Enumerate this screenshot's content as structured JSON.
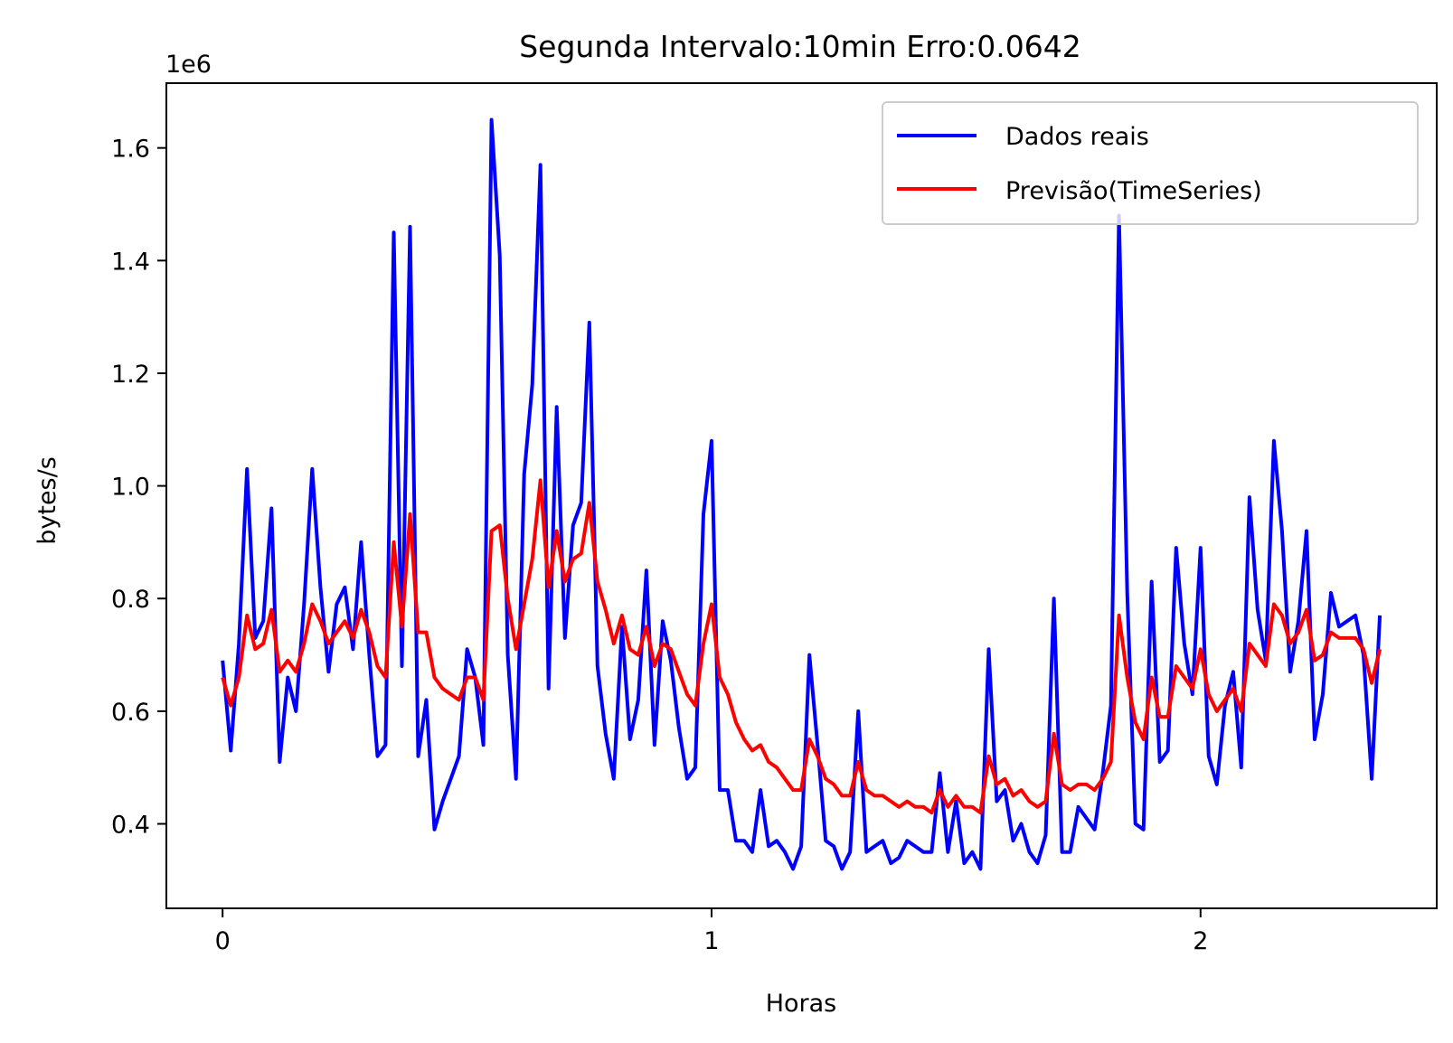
{
  "chart_data": {
    "type": "line",
    "title": "Segunda Intervalo:10min Erro:0.0642",
    "xlabel": "Horas",
    "ylabel": "bytes/s",
    "y_offset_label": "1e6",
    "xlim": [
      -0.115,
      2.483
    ],
    "ylim": [
      0.25,
      1.715
    ],
    "x_ticks": [
      0,
      1,
      2
    ],
    "x_tick_labels": [
      "0",
      "1",
      "2"
    ],
    "y_ticks": [
      0.4,
      0.6,
      0.8,
      1.0,
      1.2,
      1.4,
      1.6
    ],
    "y_tick_labels": [
      "0.4",
      "0.6",
      "0.8",
      "1.0",
      "1.2",
      "1.4",
      "1.6"
    ],
    "grid": false,
    "legend_position": "top-right",
    "series": [
      {
        "name": "Dados reais",
        "color": "#0000ff",
        "x": [
          0,
          0.0167,
          0.0333,
          0.05,
          0.0667,
          0.0833,
          0.1,
          0.1167,
          0.1333,
          0.15,
          0.1667,
          0.1833,
          0.2,
          0.2167,
          0.2333,
          0.25,
          0.2667,
          0.2833,
          0.3,
          0.3167,
          0.3333,
          0.35,
          0.3667,
          0.3833,
          0.4,
          0.4167,
          0.4333,
          0.45,
          0.4667,
          0.4833,
          0.5,
          0.5167,
          0.5333,
          0.55,
          0.5667,
          0.5833,
          0.6,
          0.6167,
          0.6333,
          0.65,
          0.6667,
          0.6833,
          0.7,
          0.7167,
          0.7333,
          0.75,
          0.7667,
          0.7833,
          0.8,
          0.8167,
          0.8333,
          0.85,
          0.8667,
          0.8833,
          0.9,
          0.9167,
          0.9333,
          0.95,
          0.9667,
          0.9833,
          1.0,
          1.0167,
          1.0333,
          1.05,
          1.0667,
          1.0833,
          1.1,
          1.1167,
          1.1333,
          1.15,
          1.1667,
          1.1833,
          1.2,
          1.2167,
          1.2333,
          1.25,
          1.2667,
          1.2833,
          1.3,
          1.3167,
          1.3333,
          1.35,
          1.3667,
          1.3833,
          1.4,
          1.4167,
          1.4333,
          1.45,
          1.4667,
          1.4833,
          1.5,
          1.5167,
          1.5333,
          1.55,
          1.5667,
          1.5833,
          1.6,
          1.6167,
          1.6333,
          1.65,
          1.6667,
          1.6833,
          1.7,
          1.7167,
          1.7333,
          1.75,
          1.7667,
          1.7833,
          1.8,
          1.8167,
          1.8333,
          1.85,
          1.8667,
          1.8833,
          1.9,
          1.9167,
          1.9333,
          1.95,
          1.9667,
          1.9833,
          2.0,
          2.0167,
          2.0333,
          2.05,
          2.0667,
          2.0833,
          2.1,
          2.1167,
          2.1333,
          2.15,
          2.1667,
          2.1833,
          2.2,
          2.2167,
          2.2333,
          2.25,
          2.2667,
          2.2833,
          2.3,
          2.3167,
          2.3333,
          2.35,
          2.3667
        ],
        "values": [
          0.69,
          0.53,
          0.72,
          1.03,
          0.73,
          0.76,
          0.96,
          0.51,
          0.66,
          0.6,
          0.79,
          1.03,
          0.82,
          0.67,
          0.79,
          0.82,
          0.71,
          0.9,
          0.7,
          0.52,
          0.54,
          1.45,
          0.68,
          1.46,
          0.52,
          0.62,
          0.39,
          0.44,
          0.48,
          0.52,
          0.71,
          0.66,
          0.54,
          1.65,
          1.41,
          0.7,
          0.48,
          1.02,
          1.18,
          1.57,
          0.64,
          1.14,
          0.73,
          0.93,
          0.97,
          1.29,
          0.68,
          0.56,
          0.48,
          0.75,
          0.55,
          0.62,
          0.85,
          0.54,
          0.76,
          0.69,
          0.57,
          0.48,
          0.5,
          0.95,
          1.08,
          0.46,
          0.46,
          0.37,
          0.37,
          0.35,
          0.46,
          0.36,
          0.37,
          0.35,
          0.32,
          0.36,
          0.7,
          0.54,
          0.37,
          0.36,
          0.32,
          0.35,
          0.6,
          0.35,
          0.36,
          0.37,
          0.33,
          0.34,
          0.37,
          0.36,
          0.35,
          0.35,
          0.49,
          0.35,
          0.44,
          0.33,
          0.35,
          0.32,
          0.71,
          0.44,
          0.46,
          0.37,
          0.4,
          0.35,
          0.33,
          0.38,
          0.8,
          0.35,
          0.35,
          0.43,
          0.41,
          0.39,
          0.49,
          0.61,
          1.48,
          0.81,
          0.4,
          0.39,
          0.83,
          0.51,
          0.53,
          0.89,
          0.72,
          0.63,
          0.89,
          0.52,
          0.47,
          0.61,
          0.67,
          0.5,
          0.98,
          0.78,
          0.69,
          1.08,
          0.92,
          0.67,
          0.76,
          0.92,
          0.55,
          0.63,
          0.81,
          0.75,
          0.76,
          0.77,
          0.7,
          0.48,
          0.77
        ]
      },
      {
        "name": "Previsão(TimeSeries)",
        "color": "#ff0000",
        "x": [
          0,
          0.0167,
          0.0333,
          0.05,
          0.0667,
          0.0833,
          0.1,
          0.1167,
          0.1333,
          0.15,
          0.1667,
          0.1833,
          0.2,
          0.2167,
          0.2333,
          0.25,
          0.2667,
          0.2833,
          0.3,
          0.3167,
          0.3333,
          0.35,
          0.3667,
          0.3833,
          0.4,
          0.4167,
          0.4333,
          0.45,
          0.4667,
          0.4833,
          0.5,
          0.5167,
          0.5333,
          0.55,
          0.5667,
          0.5833,
          0.6,
          0.6167,
          0.6333,
          0.65,
          0.6667,
          0.6833,
          0.7,
          0.7167,
          0.7333,
          0.75,
          0.7667,
          0.7833,
          0.8,
          0.8167,
          0.8333,
          0.85,
          0.8667,
          0.8833,
          0.9,
          0.9167,
          0.9333,
          0.95,
          0.9667,
          0.9833,
          1.0,
          1.0167,
          1.0333,
          1.05,
          1.0667,
          1.0833,
          1.1,
          1.1167,
          1.1333,
          1.15,
          1.1667,
          1.1833,
          1.2,
          1.2167,
          1.2333,
          1.25,
          1.2667,
          1.2833,
          1.3,
          1.3167,
          1.3333,
          1.35,
          1.3667,
          1.3833,
          1.4,
          1.4167,
          1.4333,
          1.45,
          1.4667,
          1.4833,
          1.5,
          1.5167,
          1.5333,
          1.55,
          1.5667,
          1.5833,
          1.6,
          1.6167,
          1.6333,
          1.65,
          1.6667,
          1.6833,
          1.7,
          1.7167,
          1.7333,
          1.75,
          1.7667,
          1.7833,
          1.8,
          1.8167,
          1.8333,
          1.85,
          1.8667,
          1.8833,
          1.9,
          1.9167,
          1.9333,
          1.95,
          1.9667,
          1.9833,
          2.0,
          2.0167,
          2.0333,
          2.05,
          2.0667,
          2.0833,
          2.1,
          2.1167,
          2.1333,
          2.15,
          2.1667,
          2.1833,
          2.2,
          2.2167,
          2.2333,
          2.25,
          2.2667,
          2.2833,
          2.3,
          2.3167,
          2.3333,
          2.35,
          2.3667
        ],
        "values": [
          0.66,
          0.61,
          0.66,
          0.77,
          0.71,
          0.72,
          0.78,
          0.67,
          0.69,
          0.67,
          0.72,
          0.79,
          0.76,
          0.72,
          0.74,
          0.76,
          0.73,
          0.78,
          0.74,
          0.68,
          0.66,
          0.9,
          0.75,
          0.95,
          0.74,
          0.74,
          0.66,
          0.64,
          0.63,
          0.62,
          0.66,
          0.66,
          0.62,
          0.92,
          0.93,
          0.8,
          0.71,
          0.79,
          0.87,
          1.01,
          0.82,
          0.92,
          0.83,
          0.87,
          0.88,
          0.97,
          0.83,
          0.78,
          0.72,
          0.77,
          0.71,
          0.7,
          0.75,
          0.68,
          0.72,
          0.71,
          0.67,
          0.63,
          0.61,
          0.72,
          0.79,
          0.66,
          0.63,
          0.58,
          0.55,
          0.53,
          0.54,
          0.51,
          0.5,
          0.48,
          0.46,
          0.46,
          0.55,
          0.52,
          0.48,
          0.47,
          0.45,
          0.45,
          0.51,
          0.46,
          0.45,
          0.45,
          0.44,
          0.43,
          0.44,
          0.43,
          0.43,
          0.42,
          0.46,
          0.43,
          0.45,
          0.43,
          0.43,
          0.42,
          0.52,
          0.47,
          0.48,
          0.45,
          0.46,
          0.44,
          0.43,
          0.44,
          0.56,
          0.47,
          0.46,
          0.47,
          0.47,
          0.46,
          0.48,
          0.51,
          0.77,
          0.66,
          0.58,
          0.55,
          0.66,
          0.59,
          0.59,
          0.68,
          0.66,
          0.64,
          0.71,
          0.63,
          0.6,
          0.62,
          0.64,
          0.6,
          0.72,
          0.7,
          0.68,
          0.79,
          0.77,
          0.72,
          0.74,
          0.78,
          0.69,
          0.7,
          0.74,
          0.73,
          0.73,
          0.73,
          0.71,
          0.65,
          0.71
        ]
      }
    ]
  }
}
